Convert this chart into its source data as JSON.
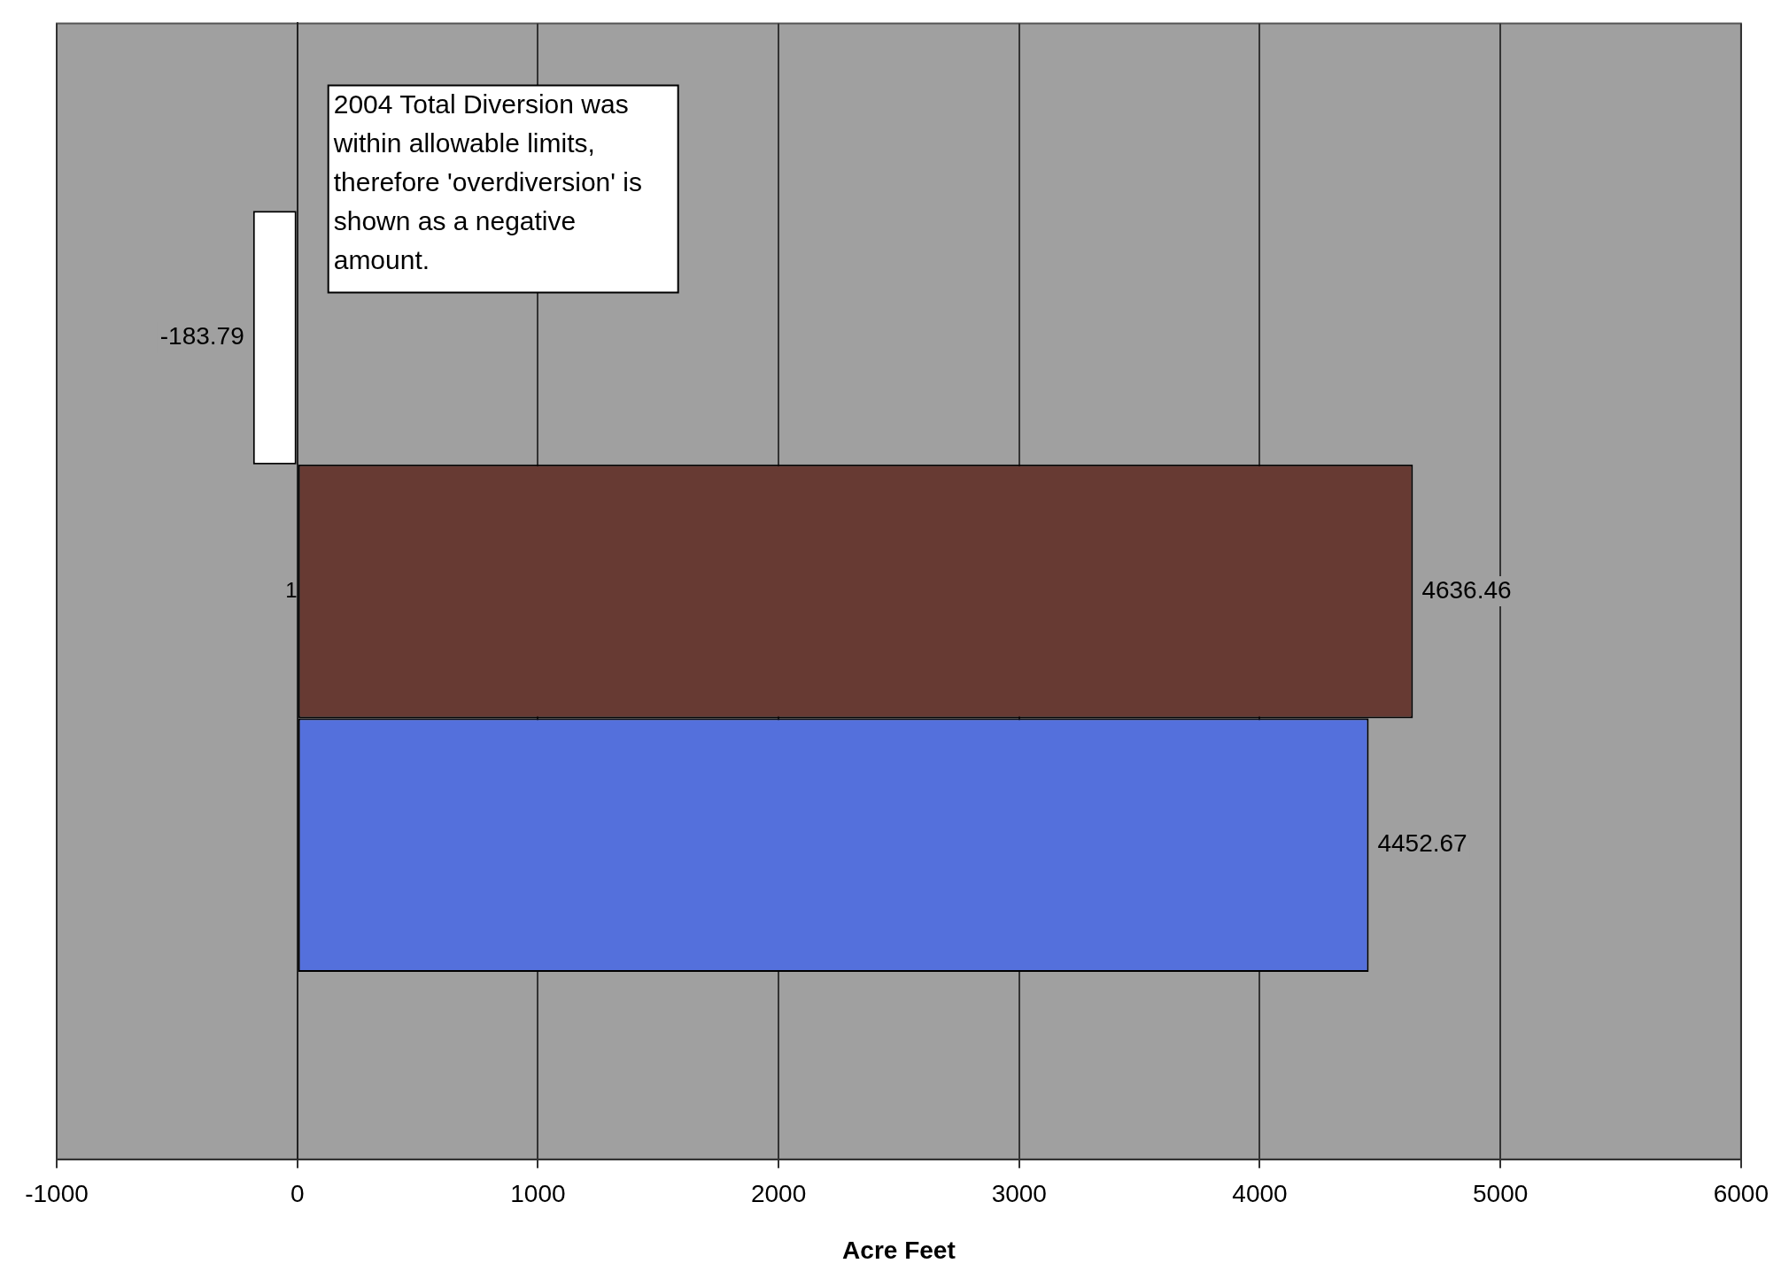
{
  "chart_data": {
    "type": "bar",
    "orientation": "horizontal",
    "categories": [
      "1"
    ],
    "series": [
      {
        "color": "#ffffff",
        "values": [
          -183.79
        ]
      },
      {
        "color": "#673a33",
        "values": [
          4636.46
        ]
      },
      {
        "color": "#5470dc",
        "values": [
          4452.67
        ]
      }
    ],
    "xlabel": "Acre Feet",
    "xlim": [
      -1000,
      6000
    ],
    "xticks": [
      -1000,
      0,
      1000,
      2000,
      3000,
      4000,
      5000,
      6000
    ],
    "grid": "x",
    "data_labels": true,
    "legend": false,
    "annotations": [
      "2004 Total Diversion was within allowable limits, therefore 'overdiversion' is shown as a negative amount."
    ]
  }
}
